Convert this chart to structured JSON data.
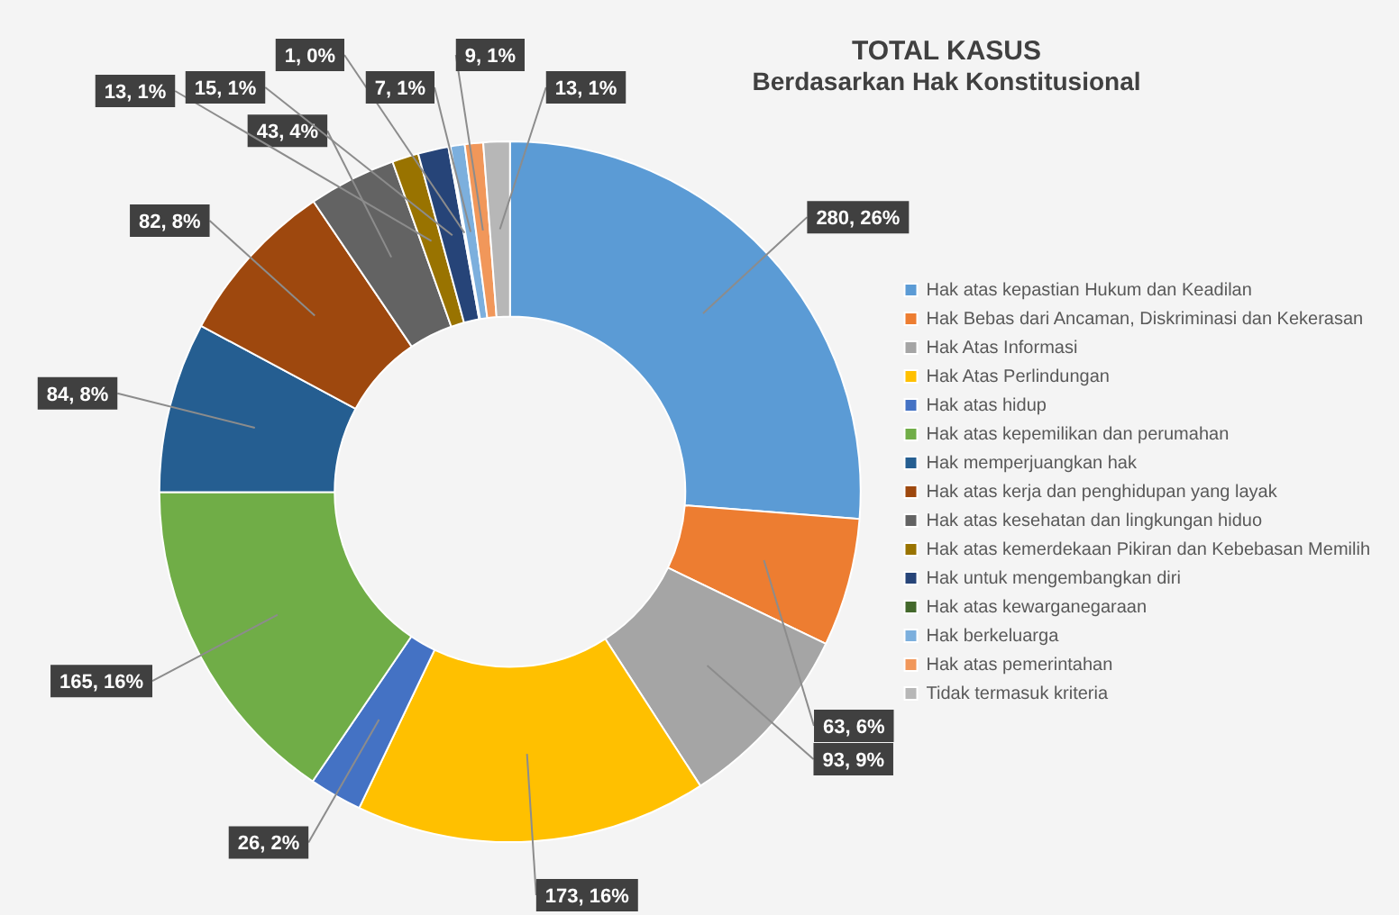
{
  "chart_data": {
    "type": "donut",
    "title": "TOTAL KASUS",
    "subtitle": "Berdasarkan Hak Konstitusional",
    "categories": [
      "Hak atas kepastian Hukum dan Keadilan",
      "Hak Bebas dari Ancaman, Diskriminasi dan Kekerasan",
      "Hak Atas Informasi",
      "Hak Atas Perlindungan",
      "Hak atas hidup",
      "Hak atas kepemilikan dan perumahan",
      "Hak memperjuangkan hak",
      "Hak atas kerja dan penghidupan yang layak",
      "Hak atas kesehatan dan lingkungan hiduo",
      "Hak atas kemerdekaan Pikiran dan Kebebasan Memilih",
      "Hak untuk mengembangkan diri",
      "Hak atas kewarganegaraan",
      "Hak berkeluarga",
      "Hak atas pemerintahan",
      "Tidak termasuk kriteria"
    ],
    "values": [
      280,
      63,
      93,
      173,
      26,
      165,
      84,
      82,
      43,
      13,
      15,
      1,
      7,
      9,
      13
    ],
    "value_labels": [
      "280, 26%",
      "63, 6%",
      "93, 9%",
      "173, 16%",
      "26, 2%",
      "165, 16%",
      "84, 8%",
      "82, 8%",
      "43, 4%",
      "13, 1%",
      "15, 1%",
      "1, 0%",
      "7, 1%",
      "9, 1%",
      "13, 1%"
    ],
    "colors": [
      "#5b9bd5",
      "#ed7d31",
      "#a5a5a5",
      "#ffc000",
      "#4472c4",
      "#70ad47",
      "#255e91",
      "#9e480e",
      "#636363",
      "#997300",
      "#264478",
      "#43682b",
      "#7cafdd",
      "#f1975a",
      "#b7b7b7"
    ],
    "legend": "right"
  }
}
